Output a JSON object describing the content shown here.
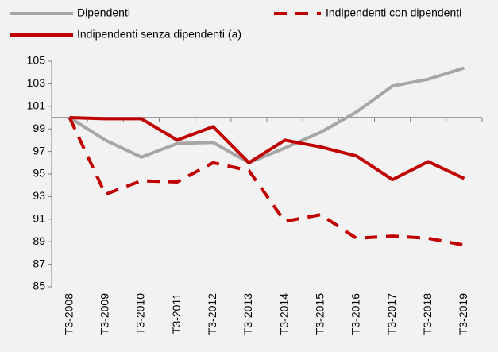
{
  "chart_data": {
    "type": "line",
    "categories": [
      "T3-2008",
      "T3-2009",
      "T3-2010",
      "T3-2011",
      "T3-2012",
      "T3-2013",
      "T3-2014",
      "T3-2015",
      "T3-2016",
      "T3-2017",
      "T3-2018",
      "T3-2019"
    ],
    "series": [
      {
        "name": "Dipendenti",
        "color": "#a6a6a6",
        "dash": false,
        "values": [
          100,
          98,
          96.5,
          97.7,
          97.8,
          96,
          97.3,
          98.7,
          100.5,
          102.8,
          103.4,
          104.4
        ]
      },
      {
        "name": "Indipendenti con dipendenti",
        "color": "#c00000",
        "dash": true,
        "values": [
          100,
          93.2,
          94.4,
          94.3,
          96,
          95.3,
          90.8,
          91.4,
          89.3,
          89.5,
          89.3,
          88.7
        ]
      },
      {
        "name": "Indipendenti senza dipendenti (a)",
        "color": "#c00000",
        "dash": false,
        "values": [
          100,
          99.9,
          99.9,
          98,
          99.2,
          96,
          98,
          97.4,
          96.6,
          94.5,
          96.1,
          94.6
        ]
      }
    ],
    "ylim": [
      85,
      105
    ],
    "yticks": [
      85,
      87,
      89,
      91,
      93,
      95,
      97,
      99,
      101,
      103,
      105
    ],
    "xaxis_crosses": 100,
    "grid": false
  }
}
